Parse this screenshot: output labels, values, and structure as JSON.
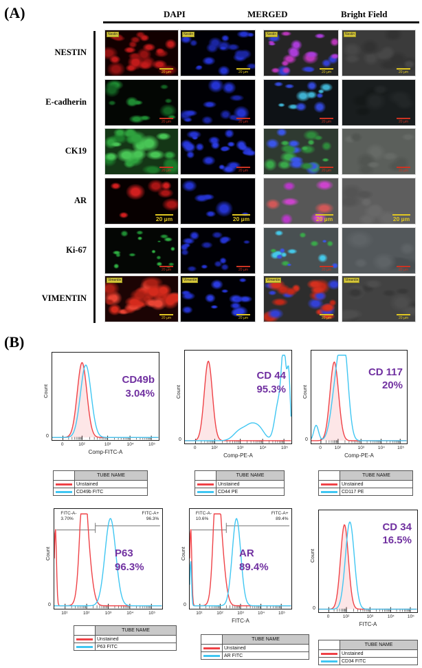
{
  "panel_a": {
    "label": "(A)",
    "col_headers": [
      "DAPI",
      "MERGED",
      "Bright Field"
    ],
    "rows": [
      {
        "label": "NESTIN",
        "corner": "Nestin",
        "scale_text": "20 µm",
        "scale_color": "#e0c722",
        "scale_big": false,
        "tiles": [
          {
            "name": "stain",
            "bg": "#120000",
            "colors": [
              "#c01a1a",
              "#911111"
            ],
            "count": 22,
            "size": 14
          },
          {
            "name": "dapi",
            "bg": "#000006",
            "colors": [
              "#2433d0",
              "#1a25a0"
            ],
            "count": 20,
            "size": 10
          },
          {
            "name": "merged",
            "bg": "#252525",
            "colors": [
              "#b836b8",
              "#3340d4",
              "#aa3cd8"
            ],
            "count": 22,
            "size": 11
          },
          {
            "name": "bright-field",
            "bg": "#3b3b3b",
            "colors": [
              "#474747",
              "#323232"
            ],
            "count": 12,
            "size": 16
          }
        ]
      },
      {
        "label": "E-cadherin",
        "corner": null,
        "scale_text": "20 µm",
        "scale_color": "#cc3322",
        "scale_big": false,
        "tiles": [
          {
            "name": "stain",
            "bg": "#030603",
            "colors": [
              "#1f8c33",
              "#136022"
            ],
            "count": 12,
            "size": 12
          },
          {
            "name": "dapi",
            "bg": "#000005",
            "colors": [
              "#2433d0",
              "#1a25a0"
            ],
            "count": 12,
            "size": 11
          },
          {
            "name": "merged",
            "bg": "#0e1216",
            "colors": [
              "#3248d8",
              "#3fb0d0"
            ],
            "count": 12,
            "size": 10
          },
          {
            "name": "bright-field",
            "bg": "#191d1e",
            "colors": [
              "#222627",
              "#141818"
            ],
            "count": 8,
            "size": 18
          }
        ]
      },
      {
        "label": "CK19",
        "corner": null,
        "scale_text": "20 µm",
        "scale_color": "#cc3322",
        "scale_big": false,
        "tiles": [
          {
            "name": "stain",
            "bg": "#143616",
            "colors": [
              "#2fa23e",
              "#1c7a2a",
              "#48c455"
            ],
            "count": 24,
            "size": 15
          },
          {
            "name": "dapi",
            "bg": "#000005",
            "colors": [
              "#2433d0",
              "#2b3ce0"
            ],
            "count": 22,
            "size": 10
          },
          {
            "name": "merged",
            "bg": "#2f3a31",
            "colors": [
              "#3aa84a",
              "#3a55e8",
              "#2f8a3c"
            ],
            "count": 24,
            "size": 12
          },
          {
            "name": "bright-field",
            "bg": "#5b5f5b",
            "colors": [
              "#666a66",
              "#515551"
            ],
            "count": 10,
            "size": 18
          }
        ]
      },
      {
        "label": "AR",
        "corner": null,
        "scale_text": "20 µm",
        "scale_color": "#e0c722",
        "scale_big": true,
        "tiles": [
          {
            "name": "stain",
            "bg": "#070000",
            "colors": [
              "#d01f1f",
              "#a81515"
            ],
            "count": 7,
            "size": 15
          },
          {
            "name": "dapi",
            "bg": "#000005",
            "colors": [
              "#2433d0"
            ],
            "count": 6,
            "size": 12
          },
          {
            "name": "merged",
            "bg": "#575757",
            "colors": [
              "#cc44cc",
              "#b838c8",
              "#d05858"
            ],
            "count": 7,
            "size": 13
          },
          {
            "name": "bright-field",
            "bg": "#5e5e5e",
            "colors": [
              "#686868",
              "#545454"
            ],
            "count": 9,
            "size": 18
          }
        ]
      },
      {
        "label": "Ki-67",
        "corner": null,
        "scale_text": "20 µm",
        "scale_color": "#cc3322",
        "scale_big": false,
        "tiles": [
          {
            "name": "stain",
            "bg": "#040604",
            "colors": [
              "#2fae42",
              "#1f8c33"
            ],
            "count": 16,
            "size": 6
          },
          {
            "name": "dapi",
            "bg": "#000005",
            "colors": [
              "#2433d0",
              "#1a25a0"
            ],
            "count": 15,
            "size": 9
          },
          {
            "name": "merged",
            "bg": "#495052",
            "colors": [
              "#45c8e8",
              "#3a55e8",
              "#3aa84a"
            ],
            "count": 16,
            "size": 8
          },
          {
            "name": "bright-field",
            "bg": "#53585b",
            "colors": [
              "#5e6366",
              "#484d50"
            ],
            "count": 8,
            "size": 20
          }
        ]
      },
      {
        "label": "VIMENTIN",
        "corner": "Vimentin",
        "scale_text": "20 µm",
        "scale_color": "#e0c722",
        "scale_big": false,
        "tiles": [
          {
            "name": "stain",
            "bg": "#1c0404",
            "colors": [
              "#d42a1c",
              "#a81f14",
              "#e84434"
            ],
            "count": 24,
            "size": 15
          },
          {
            "name": "dapi",
            "bg": "#000005",
            "colors": [
              "#2433d0",
              "#2b3ce0"
            ],
            "count": 14,
            "size": 11
          },
          {
            "name": "merged",
            "bg": "#2d2d2d",
            "colors": [
              "#d4301e",
              "#3340d4",
              "#c02818"
            ],
            "count": 24,
            "size": 12
          },
          {
            "name": "bright-field",
            "bg": "#424242",
            "colors": [
              "#4d4d4d",
              "#383838"
            ],
            "count": 12,
            "size": 16
          }
        ]
      }
    ]
  },
  "panel_b": {
    "label": "(B)",
    "accent_purple": "#7030a0",
    "red": "#ef4146",
    "cyan": "#3fc6f2"
  },
  "chart_data": [
    {
      "type": "area",
      "title": "CD49b",
      "percent": "3.04%",
      "xlabel": "Comp-FITC-A",
      "ylabel": "Count",
      "y_zero": "0",
      "scale": "biexp",
      "xticks": [
        "0",
        "10²",
        "10³",
        "10⁴",
        "10⁵"
      ],
      "series": [
        {
          "name": "Unstained",
          "color": "#ef4146",
          "filled": true,
          "peaks": [
            {
              "c": 0.28,
              "w": 0.045,
              "h": 0.93
            }
          ]
        },
        {
          "name": "CD49b FITC",
          "color": "#3fc6f2",
          "filled": false,
          "peaks": [
            {
              "c": 0.315,
              "w": 0.05,
              "h": 0.9
            }
          ]
        }
      ],
      "legend": {
        "header": "TUBE NAME",
        "rows": [
          "Unstained",
          "CD49b FITC"
        ]
      },
      "gate": null
    },
    {
      "type": "area",
      "title": "CD 44",
      "percent": "95.3%",
      "xlabel": "Comp-PE-A",
      "ylabel": "Count",
      "y_zero": "0",
      "scale": "biexp",
      "xticks": [
        "0",
        "10²",
        "10³",
        "10⁴",
        "10⁵"
      ],
      "series": [
        {
          "name": "Unstained",
          "color": "#ef4146",
          "filled": true,
          "peaks": [
            {
              "c": 0.22,
              "w": 0.038,
              "h": 0.93
            }
          ]
        },
        {
          "name": "CD44 PE",
          "color": "#3fc6f2",
          "filled": false,
          "peaks": [
            {
              "c": 0.52,
              "w": 0.06,
              "h": 0.12
            },
            {
              "c": 0.62,
              "w": 0.05,
              "h": 0.14
            },
            {
              "c": 0.7,
              "w": 0.05,
              "h": 0.13
            },
            {
              "c": 0.88,
              "w": 0.035,
              "h": 0.45
            },
            {
              "c": 0.93,
              "w": 0.022,
              "h": 0.95
            },
            {
              "c": 0.975,
              "w": 0.015,
              "h": 0.72
            }
          ]
        }
      ],
      "legend": {
        "header": "TUBE NAME",
        "rows": [
          "Unstained",
          "CD44 PE"
        ]
      },
      "gate": null
    },
    {
      "type": "area",
      "title": "CD 117",
      "percent": "20%",
      "xlabel": "Comp-PE-A",
      "ylabel": "Count",
      "y_zero": "0",
      "scale": "biexp",
      "xticks": [
        "0",
        "10²",
        "10³",
        "10⁴",
        "10⁵"
      ],
      "series": [
        {
          "name": "Unstained",
          "color": "#ef4146",
          "filled": true,
          "peaks": [
            {
              "c": 0.24,
              "w": 0.045,
              "h": 0.92
            }
          ]
        },
        {
          "name": "CD117 PE",
          "color": "#3fc6f2",
          "filled": false,
          "peaks": [
            {
              "c": 0.05,
              "w": 0.025,
              "h": 0.18
            },
            {
              "c": 0.27,
              "w": 0.055,
              "h": 0.72
            },
            {
              "c": 0.345,
              "w": 0.045,
              "h": 0.9
            }
          ]
        }
      ],
      "legend": {
        "header": "TUBE NAME",
        "rows": [
          "Unstained",
          "CD117 PE"
        ]
      },
      "gate": null
    },
    {
      "type": "area",
      "title": "P63",
      "percent": "96.3%",
      "xlabel": "",
      "ylabel": "Count",
      "y_zero": "0",
      "scale": "log",
      "xticks": [
        "10¹",
        "10²",
        "10³",
        "10⁴",
        "10⁵"
      ],
      "series": [
        {
          "name": "Unstained",
          "color": "#ef4146",
          "filled": false,
          "peaks": [
            {
              "c": 0.01,
              "w": 0.01,
              "h": 0.85
            },
            {
              "c": 0.265,
              "w": 0.028,
              "h": 0.72
            },
            {
              "c": 0.29,
              "w": 0.045,
              "h": 0.8
            }
          ]
        },
        {
          "name": "P63 FITC",
          "color": "#3fc6f2",
          "filled": false,
          "peaks": [
            {
              "c": 0.52,
              "w": 0.05,
              "h": 0.95
            }
          ]
        }
      ],
      "legend": {
        "header": "TUBE NAME",
        "rows": [
          "Unstained",
          "P63 FITC"
        ]
      },
      "gate": {
        "neg_label": "FITC-A-",
        "neg_pct": "3.70%",
        "pos_label": "FITC-A+",
        "pos_pct": "96.3%",
        "split": 0.38
      }
    },
    {
      "type": "area",
      "title": "AR",
      "percent": "89.4%",
      "xlabel": "FITC-A",
      "ylabel": "Count",
      "y_zero": "0",
      "scale": "log",
      "xticks": [
        "10¹",
        "10²",
        "10³",
        "10⁴",
        "10⁵"
      ],
      "series": [
        {
          "name": "Unstained",
          "color": "#ef4146",
          "filled": false,
          "peaks": [
            {
              "c": 0.01,
              "w": 0.01,
              "h": 0.85
            },
            {
              "c": 0.26,
              "w": 0.028,
              "h": 0.75
            },
            {
              "c": 0.29,
              "w": 0.045,
              "h": 0.85
            }
          ]
        },
        {
          "name": "AR FITC",
          "color": "#3fc6f2",
          "filled": false,
          "peaks": [
            {
              "c": 0.01,
              "w": 0.008,
              "h": 0.5
            },
            {
              "c": 0.46,
              "w": 0.042,
              "h": 0.95
            }
          ]
        }
      ],
      "legend": {
        "header": "TUBE NAME",
        "rows": [
          "Unstained",
          "AR FITC"
        ]
      },
      "gate": {
        "neg_label": "FITC-A-",
        "neg_pct": "10.6%",
        "pos_label": "FITC-A+",
        "pos_pct": "89.4%",
        "split": 0.36
      }
    },
    {
      "type": "area",
      "title": "CD 34",
      "percent": "16.5%",
      "xlabel": "FITC-A",
      "ylabel": "Count",
      "y_zero": "0",
      "scale": "biexp",
      "xticks": [
        "0",
        "10²",
        "10³",
        "10⁴",
        "10⁵"
      ],
      "series": [
        {
          "name": "Unstained",
          "color": "#ef4146",
          "filled": true,
          "peaks": [
            {
              "c": 0.26,
              "w": 0.04,
              "h": 0.9
            }
          ]
        },
        {
          "name": "CD34 FITC",
          "color": "#3fc6f2",
          "filled": false,
          "peaks": [
            {
              "c": 0.315,
              "w": 0.045,
              "h": 0.93
            }
          ]
        }
      ],
      "legend": {
        "header": "TUBE NAME",
        "rows": [
          "Unstained",
          "CD34 FITC"
        ]
      },
      "gate": null
    }
  ]
}
